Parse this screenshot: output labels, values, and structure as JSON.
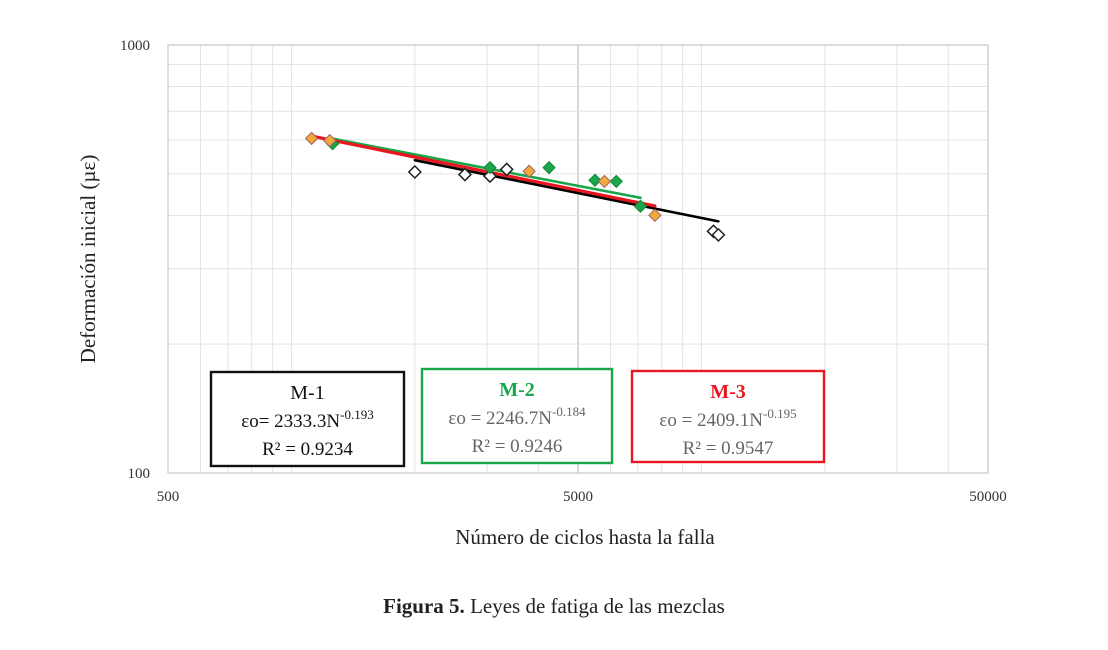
{
  "chart_data": {
    "type": "scatter",
    "x_scale": "log",
    "y_scale": "log",
    "xlim": [
      500,
      50000
    ],
    "ylim": [
      100,
      1000
    ],
    "x_ticks": [
      "500",
      "5000",
      "50000"
    ],
    "y_ticks": [
      "100",
      "1000"
    ],
    "xlabel": "Número de ciclos hasta la falla",
    "ylabel": "Deformación inicial (µε)",
    "grid": true,
    "series": [
      {
        "name": "M-1",
        "color": "#000000",
        "marker": "hollow-diamond",
        "points": [
          [
            2000,
            505
          ],
          [
            2650,
            498
          ],
          [
            3050,
            494
          ],
          [
            3350,
            512
          ],
          [
            10700,
            367
          ],
          [
            11000,
            360
          ]
        ],
        "fit": {
          "a": 2333.3,
          "b": -0.193,
          "x_range": [
            2000,
            11000
          ]
        },
        "equation_prefix": "εo= 2333.3N",
        "equation_exp": "-0.193",
        "r2": "R² = 0.9234"
      },
      {
        "name": "M-2",
        "color": "#1aa64a",
        "marker": "filled-diamond",
        "points": [
          [
            1260,
            588
          ],
          [
            3050,
            517
          ],
          [
            4250,
            517
          ],
          [
            5500,
            483
          ],
          [
            6200,
            480
          ],
          [
            7100,
            420
          ]
        ],
        "fit": {
          "a": 2246.7,
          "b": -0.184,
          "x_range": [
            1260,
            7100
          ]
        },
        "equation_prefix": "εo = 2246.7N",
        "equation_exp": "-0.184",
        "r2": "R² = 0.9246"
      },
      {
        "name": "M-3",
        "color": "#e8161e",
        "marker": "orange-diamond",
        "points": [
          [
            1120,
            605
          ],
          [
            1240,
            598
          ],
          [
            3800,
            507
          ],
          [
            5800,
            480
          ],
          [
            7700,
            400
          ]
        ],
        "fit": {
          "a": 2409.1,
          "b": -0.195,
          "x_range": [
            1120,
            7700
          ]
        },
        "equation_prefix": "εo = 2409.1N",
        "equation_exp": "-0.195",
        "r2": "R² = 0.9547"
      }
    ]
  },
  "caption": {
    "label": "Figura 5.",
    "text": " Leyes de fatiga de las mezclas"
  }
}
